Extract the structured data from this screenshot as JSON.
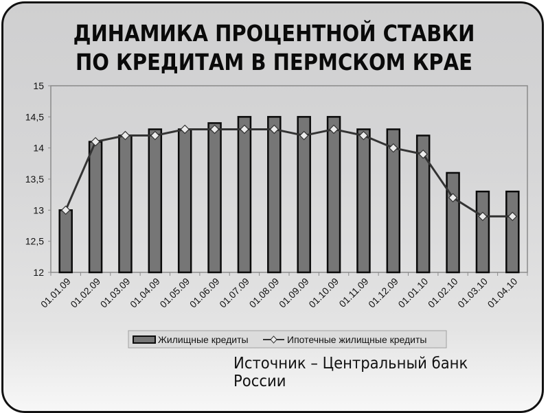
{
  "title_line1": "ДИНАМИКА ПРОЦЕНТНОЙ СТАВКИ",
  "title_line2": "ПО КРЕДИТАМ В ПЕРМСКОМ КРАЕ",
  "source": "Источник –  Центральный банк России",
  "legend": {
    "bar_label": "Жилищные кредиты",
    "line_label": "Ипотечные жилищные кредиты"
  },
  "colors": {
    "bar_fill": "#767676",
    "bar_stroke": "#0a0a0a",
    "line": "#333333",
    "marker_fill": "#ececec",
    "axis": "#8a8a8a"
  },
  "chart_data": {
    "type": "bar",
    "title": "ДИНАМИКА ПРОЦЕНТНОЙ СТАВКИ ПО КРЕДИТАМ В ПЕРМСКОМ КРАЕ",
    "xlabel": "",
    "ylabel": "",
    "ylim": [
      12,
      15
    ],
    "yticks": [
      "12",
      "12,5",
      "13",
      "13,5",
      "14",
      "14,5",
      "15"
    ],
    "grid": false,
    "legend_position": "bottom",
    "categories": [
      "01.01.09",
      "01.02.09",
      "01.03.09",
      "01.04.09",
      "01.05.09",
      "01.06.09",
      "01.07.09",
      "01.08.09",
      "01.09.09",
      "01.10.09",
      "01.11.09",
      "01.12.09",
      "01.01.10",
      "01.02.10",
      "01.03.10",
      "01.04.10"
    ],
    "series": [
      {
        "name": "Жилищные кредиты",
        "type": "bar",
        "values": [
          13.0,
          14.1,
          14.2,
          14.3,
          14.3,
          14.4,
          14.5,
          14.5,
          14.5,
          14.5,
          14.3,
          14.3,
          14.2,
          13.6,
          13.3,
          13.3
        ]
      },
      {
        "name": "Ипотечные жилищные кредиты",
        "type": "line",
        "values": [
          13.0,
          14.1,
          14.2,
          14.2,
          14.3,
          14.3,
          14.3,
          14.3,
          14.2,
          14.3,
          14.2,
          14.0,
          13.9,
          13.2,
          12.9,
          12.9
        ]
      }
    ]
  }
}
